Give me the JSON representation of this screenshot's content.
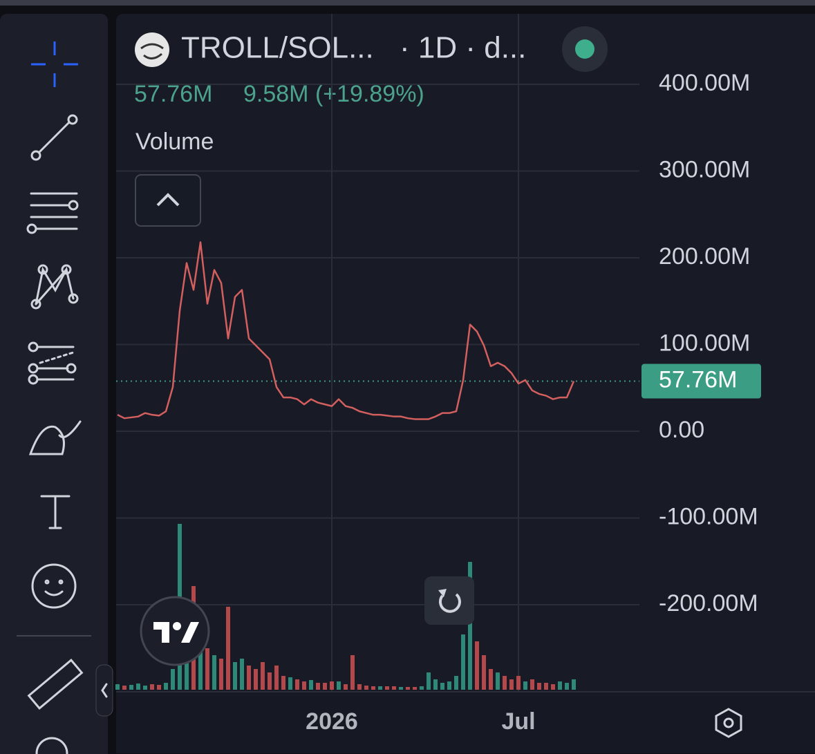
{
  "chart_data": {
    "type": "line",
    "header": {
      "symbol": "TROLL/SOL...",
      "interval": "· 1D · d...",
      "price": "57.76M",
      "change": "9.58M (+19.89%)",
      "indicator": "Volume"
    },
    "categories": [
      null,
      null,
      null,
      null,
      null,
      null,
      null,
      null,
      null,
      null,
      null,
      null,
      null,
      null,
      null,
      null,
      null,
      null,
      null,
      null,
      null,
      null,
      null,
      null,
      null,
      null,
      null,
      null,
      null,
      null,
      null,
      "2026",
      null,
      null,
      null,
      null,
      null,
      null,
      null,
      null,
      null,
      null,
      null,
      null,
      null,
      null,
      null,
      null,
      null,
      null,
      null,
      null,
      null,
      null,
      null,
      null,
      null,
      null,
      "Jul",
      null,
      null,
      null,
      null,
      null,
      null,
      null,
      null
    ],
    "series": [
      {
        "color": "#d35f5f",
        "values": [
          19000000,
          15000000,
          16000000,
          17000000,
          21000000,
          19000000,
          18000000,
          23000000,
          51000000,
          139000000,
          194000000,
          163000000,
          218000000,
          147000000,
          186000000,
          171000000,
          107000000,
          155000000,
          163000000,
          107000000,
          99000000,
          91000000,
          83000000,
          51000000,
          39000000,
          39000000,
          37000000,
          31000000,
          37000000,
          33000000,
          31000000,
          29000000,
          37000000,
          29000000,
          27000000,
          23000000,
          21000000,
          19000000,
          19000000,
          18000000,
          17000000,
          17000000,
          15000000,
          14000000,
          14000000,
          14000000,
          17000000,
          21000000,
          21000000,
          23000000,
          59000000,
          123000000,
          115000000,
          99000000,
          75000000,
          79000000,
          75000000,
          67000000,
          55000000,
          59000000,
          47000000,
          43000000,
          41000000,
          37000000,
          39000000,
          39000000,
          57760000
        ]
      }
    ],
    "volume": {
      "up_color": "#2e8a78",
      "down_color": "#b5484a",
      "values": [
        8,
        6,
        7,
        9,
        6,
        8,
        7,
        10,
        30,
        240,
        90,
        150,
        70,
        60,
        50,
        45,
        120,
        40,
        45,
        35,
        30,
        40,
        25,
        35,
        20,
        18,
        15,
        12,
        14,
        10,
        10,
        12,
        12,
        8,
        50,
        8,
        6,
        5,
        5,
        5,
        5,
        4,
        4,
        4,
        5,
        25,
        15,
        10,
        12,
        20,
        80,
        185,
        70,
        50,
        30,
        25,
        20,
        15,
        20,
        12,
        15,
        10,
        10,
        8,
        12,
        10,
        15
      ]
    },
    "price_line": {
      "value": 57760000,
      "label": "57.76M",
      "color": "#3b9d84"
    },
    "ylim": [
      -299600000,
      481300000
    ],
    "yticks": [
      {
        "value": 400000000,
        "label": "400.00M"
      },
      {
        "value": 300000000,
        "label": "300.00M"
      },
      {
        "value": 200000000,
        "label": "200.00M"
      },
      {
        "value": 100000000,
        "label": "100.00M"
      },
      {
        "value": 0,
        "label": "0.00"
      },
      {
        "value": -100000000,
        "label": "-100.00M"
      },
      {
        "value": -200000000,
        "label": "-200.00M"
      }
    ],
    "grid": true
  }
}
